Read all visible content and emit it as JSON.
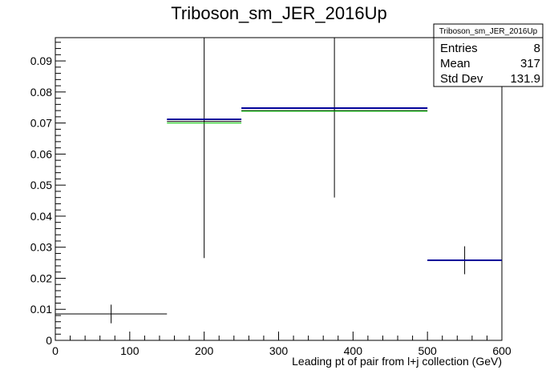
{
  "chart_data": {
    "type": "histogram",
    "title": "Triboson_sm_JER_2016Up",
    "xlabel": "Leading pt of pair from l+j collection (GeV)",
    "ylabel": "",
    "xlim": [
      0,
      600
    ],
    "ylim": [
      0,
      0.0975
    ],
    "x_ticks": [
      0,
      100,
      200,
      300,
      400,
      500,
      600
    ],
    "y_ticks": [
      0,
      0.01,
      0.02,
      0.03,
      0.04,
      0.05,
      0.06,
      0.07,
      0.08,
      0.09
    ],
    "x_tick_labels": [
      "0",
      "100",
      "200",
      "300",
      "400",
      "500",
      "600"
    ],
    "y_tick_labels": [
      "0",
      "0.01",
      "0.02",
      "0.03",
      "0.04",
      "0.05",
      "0.06",
      "0.07",
      "0.08",
      "0.09"
    ],
    "grid": false,
    "series": [
      {
        "color": "#000000",
        "bins": [
          {
            "xlow": 0,
            "xhigh": 150,
            "value": 0.0085,
            "err": 0.003
          },
          {
            "xlow": 150,
            "xhigh": 250,
            "value": 0.0705,
            "err": 0.044
          },
          {
            "xlow": 250,
            "xhigh": 500,
            "value": 0.074,
            "err": 0.028
          },
          {
            "xlow": 500,
            "xhigh": 600,
            "value": 0.0258,
            "err": 0.0045
          }
        ]
      },
      {
        "color": "#00cc00",
        "bins": [
          {
            "xlow": 150,
            "xhigh": 250,
            "value": 0.07
          },
          {
            "xlow": 250,
            "xhigh": 500,
            "value": 0.0738
          }
        ]
      },
      {
        "color": "#000099",
        "bins": [
          {
            "xlow": 150,
            "xhigh": 250,
            "value": 0.0712
          },
          {
            "xlow": 250,
            "xhigh": 500,
            "value": 0.0748
          },
          {
            "xlow": 500,
            "xhigh": 600,
            "value": 0.0258
          }
        ]
      }
    ],
    "stats_box": {
      "title": "Triboson_sm_JER_2016Up",
      "rows": [
        {
          "label": "Entries",
          "value": "8"
        },
        {
          "label": "Mean",
          "value": "317"
        },
        {
          "label": "Std Dev",
          "value": "131.9"
        }
      ]
    }
  }
}
